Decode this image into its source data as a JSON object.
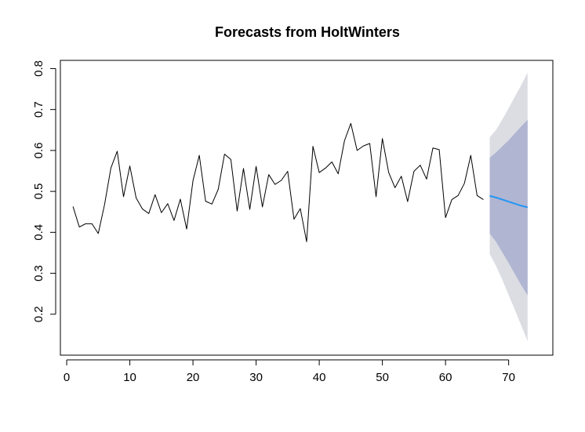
{
  "chart_data": {
    "type": "line",
    "title": "Forecasts from HoltWinters",
    "xlabel": "",
    "ylabel": "",
    "xlim": [
      -1,
      77
    ],
    "ylim": [
      0.1,
      0.82
    ],
    "x_ticks": [
      0,
      10,
      20,
      30,
      40,
      50,
      60,
      70
    ],
    "x_tick_labels": [
      "0",
      "10",
      "20",
      "30",
      "40",
      "50",
      "60",
      "70"
    ],
    "y_ticks": [
      0.2,
      0.3,
      0.4,
      0.5,
      0.6,
      0.7,
      0.8
    ],
    "y_tick_labels": [
      "0.2",
      "0.3",
      "0.4",
      "0.5",
      "0.6",
      "0.7",
      "0.8"
    ],
    "grid": false,
    "legend": "none",
    "series": [
      {
        "type": "line",
        "color": "#000000",
        "x": [
          1,
          2,
          3,
          4,
          5,
          6,
          7,
          8,
          9,
          10,
          11,
          12,
          13,
          14,
          15,
          16,
          17,
          18,
          19,
          20,
          21,
          22,
          23,
          24,
          25,
          26,
          27,
          28,
          29,
          30,
          31,
          32,
          33,
          34,
          35,
          36,
          37,
          38,
          39,
          40,
          41,
          42,
          43,
          44,
          45,
          46,
          47,
          48,
          49,
          50,
          51,
          52,
          53,
          54,
          55,
          56,
          57,
          58,
          59,
          60,
          61,
          62,
          63,
          64,
          65,
          66
        ],
        "y": [
          0.463,
          0.413,
          0.421,
          0.421,
          0.397,
          0.468,
          0.557,
          0.598,
          0.487,
          0.562,
          0.484,
          0.457,
          0.446,
          0.492,
          0.448,
          0.47,
          0.429,
          0.481,
          0.408,
          0.526,
          0.588,
          0.476,
          0.469,
          0.505,
          0.591,
          0.578,
          0.452,
          0.556,
          0.456,
          0.561,
          0.462,
          0.541,
          0.517,
          0.527,
          0.549,
          0.432,
          0.458,
          0.377,
          0.61,
          0.546,
          0.557,
          0.572,
          0.543,
          0.624,
          0.666,
          0.6,
          0.611,
          0.617,
          0.487,
          0.629,
          0.546,
          0.509,
          0.537,
          0.475,
          0.549,
          0.564,
          0.53,
          0.606,
          0.602,
          0.436,
          0.48,
          0.49,
          0.52,
          0.588,
          0.49,
          0.48
        ]
      },
      {
        "type": "forecast",
        "color": "#2196f3",
        "x": [
          67,
          68,
          69,
          70,
          71,
          72,
          73
        ],
        "y": [
          0.489,
          0.485,
          0.48,
          0.475,
          0.47,
          0.465,
          0.461
        ]
      }
    ],
    "prediction_intervals": [
      {
        "level": 95,
        "color": "#dcdde3",
        "x": [
          67,
          68,
          69,
          70,
          71,
          72,
          73
        ],
        "lower": [
          0.347,
          0.318,
          0.284,
          0.247,
          0.21,
          0.172,
          0.134
        ],
        "upper": [
          0.632,
          0.65,
          0.676,
          0.703,
          0.732,
          0.76,
          0.79
        ]
      },
      {
        "level": 80,
        "color": "#b0b5d2",
        "x": [
          67,
          68,
          69,
          70,
          71,
          72,
          73
        ],
        "lower": [
          0.397,
          0.377,
          0.351,
          0.325,
          0.298,
          0.271,
          0.246
        ],
        "upper": [
          0.582,
          0.595,
          0.61,
          0.625,
          0.642,
          0.659,
          0.675
        ]
      }
    ]
  }
}
